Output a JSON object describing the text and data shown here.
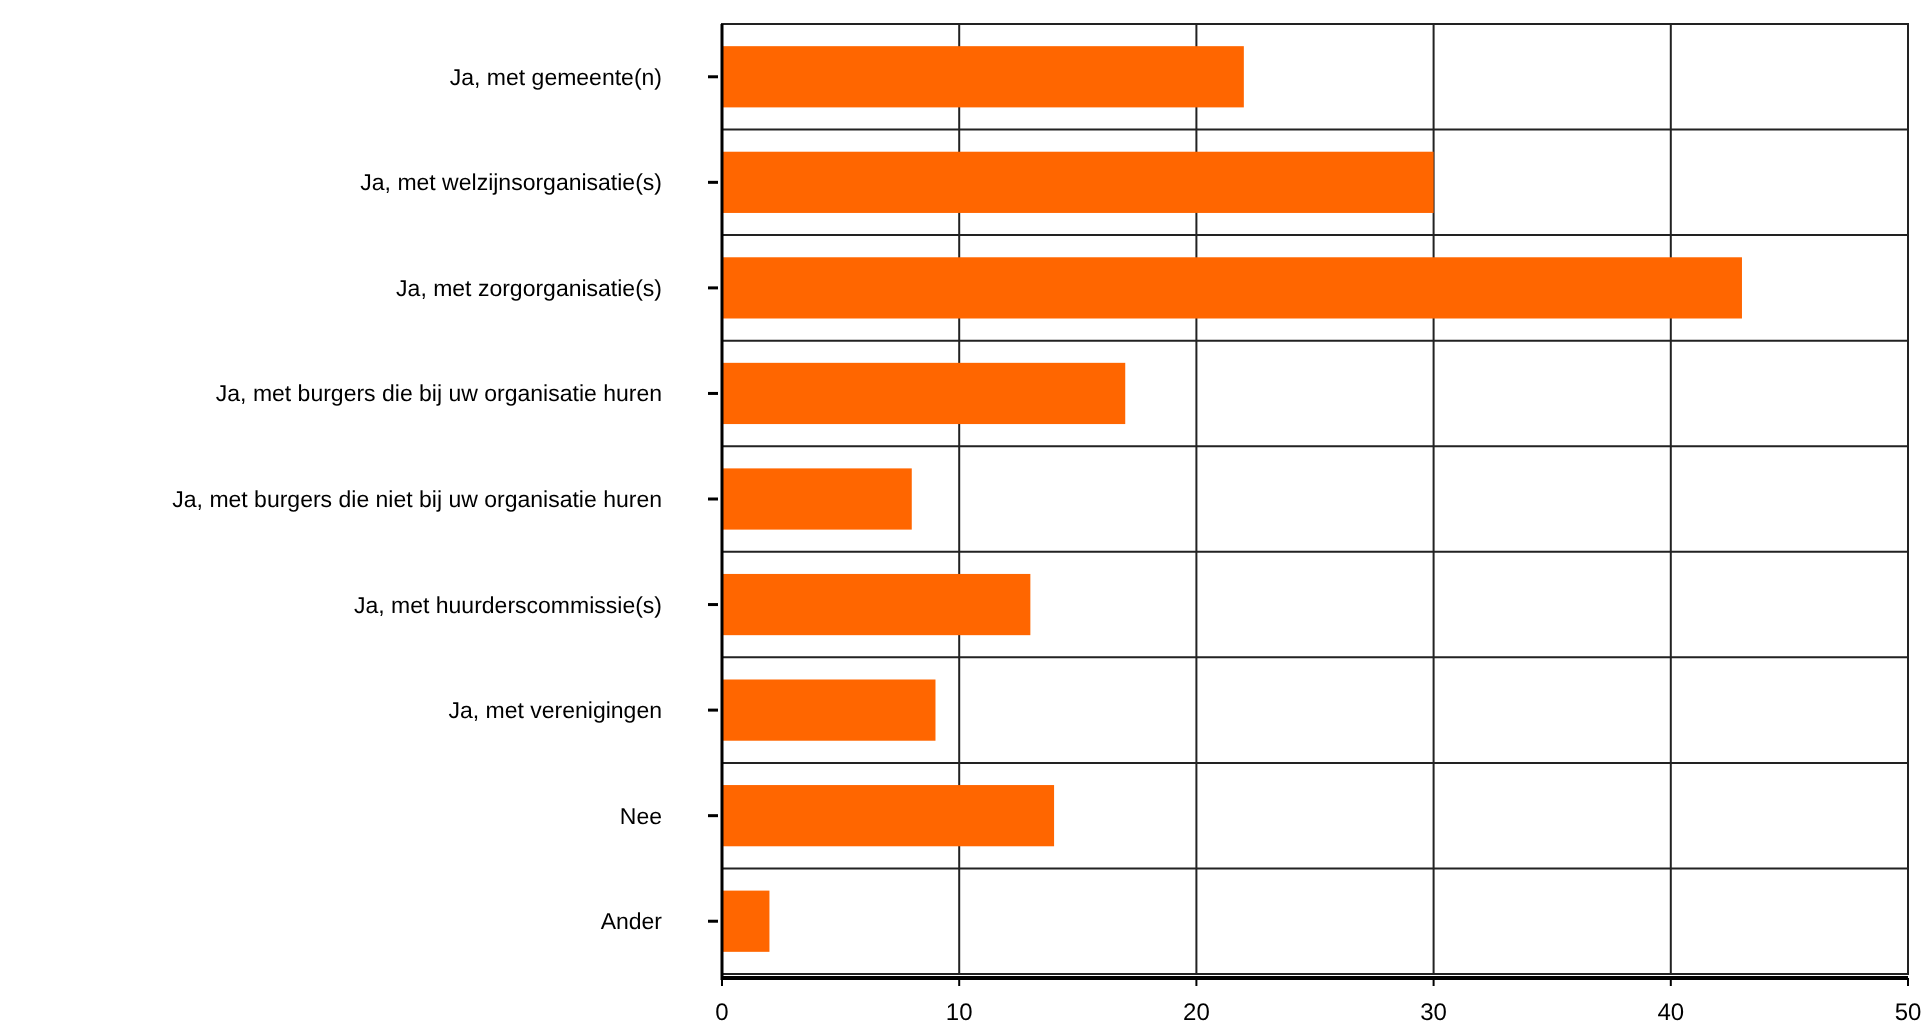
{
  "chart_data": {
    "type": "bar",
    "orientation": "horizontal",
    "categories": [
      "Ja, met gemeente(n)",
      "Ja, met welzijnsorganisatie(s)",
      "Ja, met zorgorganisatie(s)",
      "Ja, met burgers die bij uw organisatie huren",
      "Ja, met burgers die niet bij uw organisatie huren",
      "Ja, met huurderscommissie(s)",
      "Ja, met verenigingen",
      "Nee",
      "Ander"
    ],
    "values": [
      22,
      30,
      43,
      17,
      8,
      13,
      9,
      14,
      2
    ],
    "color": "#ff6600",
    "xlim": [
      0,
      50
    ],
    "xticks": [
      0,
      10,
      20,
      30,
      40,
      50
    ],
    "grid": true
  }
}
